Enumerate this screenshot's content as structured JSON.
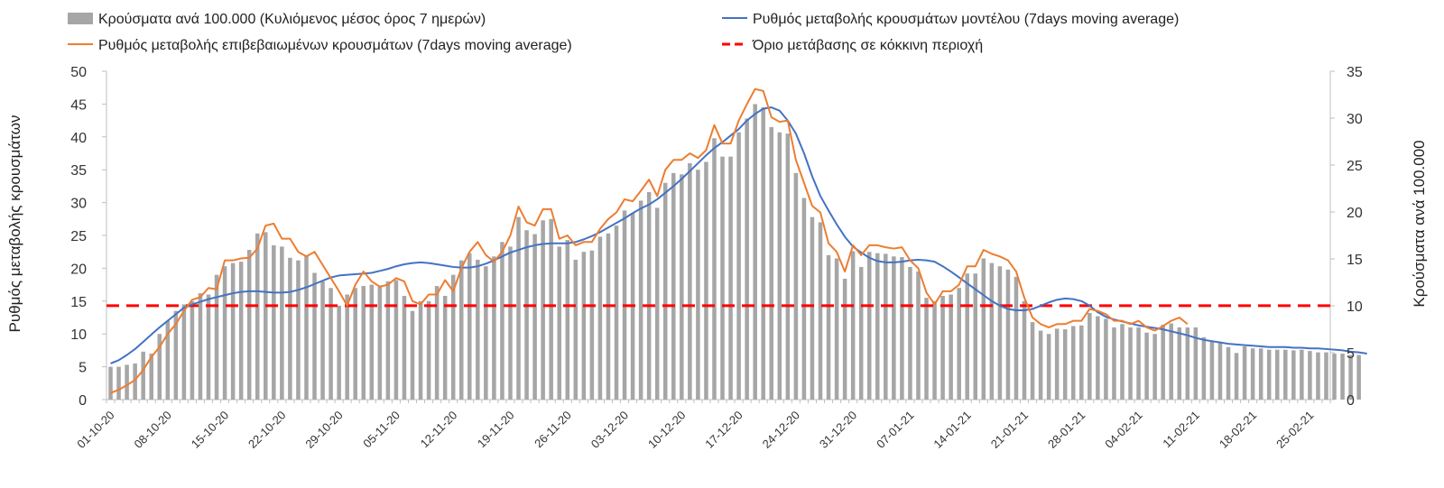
{
  "chart_data": {
    "type": "bar+line",
    "title": "",
    "colors": {
      "bars": "#a6a6a6",
      "model_line": "#4472c4",
      "confirmed_line": "#ed7d31",
      "threshold_line": "#ff0000",
      "axis": "#bfbfbf",
      "text": "#333333"
    },
    "legend": [
      {
        "key": "bars",
        "label": "Κρούσματα ανά 100.000 (Κυλιόμενος μέσος όρος 7 ημερών)",
        "icon": "bar-swatch-icon"
      },
      {
        "key": "model",
        "label": "Ρυθμός μεταβολής κρουσμάτων μοντέλου (7days moving average)",
        "icon": "line-swatch-icon"
      },
      {
        "key": "confirmed",
        "label": "Ρυθμός μεταβολής επιβεβαιωμένων κρουσμάτων (7days moving average)",
        "icon": "line-swatch-icon"
      },
      {
        "key": "threshold",
        "label": "Όριο μετάβασης σε κόκκινη περιοχή",
        "icon": "dashed-line-swatch-icon"
      }
    ],
    "ylabel_left": "Ρυθμός μεταβολής κρουσμάτων",
    "ylabel_right": "Κρούσματα ανά 100.000",
    "ylim_left": [
      0,
      50
    ],
    "yticks_left": [
      "0",
      "5",
      "10",
      "15",
      "20",
      "25",
      "30",
      "35",
      "40",
      "45",
      "50"
    ],
    "ylim_right": [
      0,
      35
    ],
    "yticks_right": [
      "0",
      "5",
      "10",
      "15",
      "20",
      "25",
      "30",
      "35"
    ],
    "n_days": 150,
    "x_tick_labels": [
      "01-10-20",
      "08-10-20",
      "15-10-20",
      "22-10-20",
      "29-10-20",
      "05-11-20",
      "12-11-20",
      "19-11-20",
      "26-11-20",
      "03-12-20",
      "10-12-20",
      "17-12-20",
      "24-12-20",
      "31-12-20",
      "07-01-21",
      "14-01-21",
      "21-01-21",
      "28-01-21",
      "04-02-21",
      "11-02-21",
      "18-02-21",
      "25-02-21"
    ],
    "x_tick_every_days": 7,
    "threshold_left": 14.3,
    "bars_left_units": [
      5,
      5,
      5.3,
      5.5,
      7.3,
      7,
      10,
      12,
      13.5,
      14.5,
      15,
      16.2,
      16,
      19,
      20.3,
      20.8,
      21,
      22.8,
      25.3,
      25.5,
      23.5,
      23.3,
      21.6,
      21.2,
      22,
      19.3,
      18,
      17,
      14.3,
      16,
      17,
      17.3,
      17.5,
      17.2,
      18,
      18.2,
      15.8,
      13.5,
      15,
      15,
      17.3,
      15.8,
      19,
      21.2,
      22.3,
      21.3,
      20.3,
      21.8,
      24,
      23.3,
      27.8,
      25.8,
      25.2,
      27.3,
      27.5,
      23.3,
      24.3,
      21.3,
      22.5,
      22.7,
      24.8,
      25.3,
      26.5,
      28.8,
      28.4,
      30.3,
      31.6,
      29.2,
      33,
      34.5,
      34.3,
      36,
      35,
      36.2,
      39.8,
      37,
      37,
      40.7,
      42.8,
      45,
      44.5,
      41.5,
      40.7,
      40.5,
      34.5,
      30.7,
      27.8,
      27,
      22,
      21.5,
      18.4,
      22.6,
      20.2,
      22.5,
      22.3,
      22.2,
      21.8,
      21.7,
      20.2,
      19.5,
      15.5,
      15,
      15.8,
      16,
      17,
      19.2,
      19.2,
      21.5,
      20.8,
      20.3,
      19.8,
      18.7,
      15,
      11.8,
      10.5,
      10,
      10.8,
      10.7,
      11.2,
      11.3,
      13.2,
      12.7,
      12.3,
      11,
      11.5,
      11,
      11,
      10.2,
      10,
      11.4,
      11.6,
      11,
      11,
      11,
      9.5,
      9,
      8.8,
      8,
      7.1,
      8.1,
      7.8,
      7.8,
      7.6,
      7.6,
      7.6,
      7.5,
      7.6,
      7.4,
      7.2,
      7.2,
      7,
      7,
      6.8,
      6.8
    ],
    "model_line_left": [
      5.5,
      6,
      6.8,
      7.7,
      8.8,
      9.9,
      11,
      12,
      13,
      14,
      14.5,
      14.9,
      15.3,
      15.6,
      15.9,
      16.2,
      16.4,
      16.5,
      16.5,
      16.4,
      16.3,
      16.3,
      16.4,
      16.7,
      17.1,
      17.6,
      18.1,
      18.6,
      18.9,
      19,
      19.1,
      19.2,
      19.3,
      19.6,
      19.9,
      20.3,
      20.6,
      20.8,
      20.9,
      20.8,
      20.6,
      20.4,
      20.2,
      20.1,
      20.1,
      20.3,
      20.7,
      21.2,
      21.8,
      22.4,
      22.8,
      23.2,
      23.5,
      23.7,
      23.8,
      23.8,
      23.8,
      24,
      24.4,
      24.9,
      25.5,
      26.2,
      26.9,
      27.6,
      28.4,
      29.1,
      29.7,
      30.5,
      31.5,
      32.5,
      33.6,
      34.8,
      36,
      37.2,
      38.3,
      39.2,
      40.2,
      41.2,
      42.5,
      43.5,
      44.3,
      44.5,
      44,
      42.5,
      40.5,
      37.5,
      34,
      31,
      28.8,
      26.7,
      24.8,
      23.3,
      22.4,
      21.6,
      21.1,
      20.9,
      20.9,
      21,
      21.2,
      21.3,
      21.2,
      21,
      20.3,
      19.5,
      18.6,
      17.7,
      16.8,
      15.9,
      15,
      14.3,
      13.8,
      13.6,
      13.6,
      13.8,
      14.3,
      14.8,
      15.2,
      15.4,
      15.3,
      15,
      14.3,
      13.3,
      12.6,
      12.2,
      11.9,
      11.6,
      11.3,
      11.1,
      10.9,
      10.7,
      10.4,
      10.1,
      9.8,
      9.4,
      9.1,
      8.9,
      8.7,
      8.5,
      8.4,
      8.3,
      8.2,
      8.1,
      8,
      8,
      8,
      7.9,
      7.9,
      7.8,
      7.8,
      7.7,
      7.6,
      7.5,
      7.3,
      7.2,
      7
    ],
    "confirmed_line_left": [
      1,
      1.5,
      2.2,
      3,
      4.5,
      6.5,
      8,
      10,
      11.5,
      13.5,
      15.2,
      15.6,
      17,
      16.8,
      21.2,
      21.2,
      21.5,
      21.6,
      23,
      26.5,
      26.8,
      24.5,
      24.5,
      22.5,
      21.8,
      22.5,
      20.5,
      18.5,
      16.5,
      14.3,
      17.5,
      19.5,
      18,
      17.2,
      17.5,
      18.5,
      18,
      15,
      14.5,
      16,
      16,
      18.2,
      16.5,
      20,
      22.5,
      24,
      22,
      21,
      22.5,
      25,
      29.4,
      27,
      26.5,
      29,
      29,
      24.5,
      25,
      23.5,
      24,
      24,
      26,
      27.5,
      28.5,
      30.5,
      30.2,
      31.8,
      33.5,
      31,
      35,
      36.5,
      36.5,
      37.5,
      36.8,
      38,
      41.8,
      39,
      39,
      42.5,
      45,
      47.3,
      47,
      43,
      42.3,
      42.5,
      36.5,
      33,
      29.5,
      28.5,
      23.8,
      22.5,
      19.5,
      23.5,
      22,
      23.5,
      23.5,
      23.2,
      23,
      23.2,
      21.2,
      20,
      16.3,
      14.5,
      16.5,
      16.5,
      17.5,
      20.3,
      20.3,
      22.8,
      22.2,
      21.8,
      21.2,
      19.5,
      15.5,
      12.5,
      11.5,
      11,
      11.5,
      11.5,
      12,
      12,
      13.8,
      13.5,
      13,
      12,
      12,
      11.5,
      12,
      11,
      10.5,
      11.2,
      12,
      12.5,
      11.5,
      null,
      null,
      null,
      null,
      null,
      null,
      null,
      null,
      null,
      null,
      null,
      null,
      null,
      null,
      null,
      null,
      null,
      null,
      null,
      null
    ]
  }
}
